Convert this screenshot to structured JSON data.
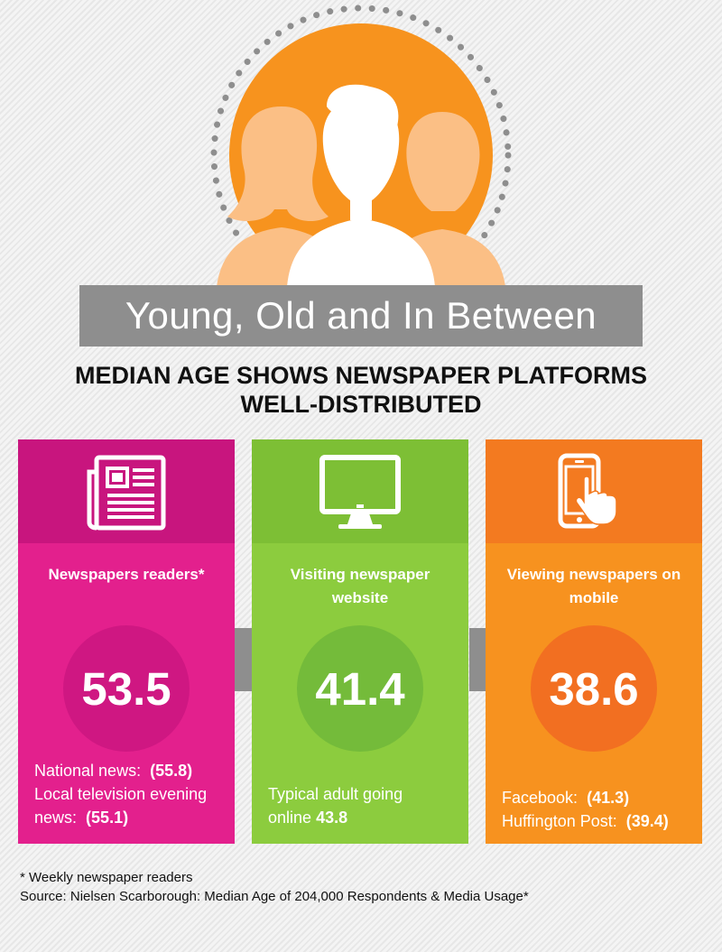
{
  "title": "Young, Old and In Between",
  "subtitle": [
    "MEDIAN AGE SHOWS NEWSPAPER PLATFORMS",
    "WELL-DISTRIBUTED"
  ],
  "colors": {
    "background": "#f1f1f1",
    "banner": "#8e8e8e",
    "hero_orange": "#f7931e",
    "hero_figure_side": "#fbbf85",
    "hero_dots": "#8e8e8e"
  },
  "hero_icon": "people-group-icon",
  "cards": [
    {
      "icon": "newspaper-icon",
      "heading": "Newspapers readers*",
      "value": "53.5",
      "colors": {
        "icon_bg": "#c8157e",
        "body": "#e3208d",
        "circle": "#cf1782"
      },
      "details": [
        {
          "text": "National news:",
          "value": "(55.8)"
        },
        {
          "text": "Local television evening",
          "value": ""
        },
        {
          "text": "news:",
          "value": "(55.1)"
        }
      ]
    },
    {
      "icon": "desktop-monitor-icon",
      "heading": "Visiting newspaper website",
      "value": "41.4",
      "colors": {
        "icon_bg": "#7dbf35",
        "body": "#8ccc3e",
        "circle": "#74bb3a"
      },
      "details": [
        {
          "text": "Typical adult going",
          "value": ""
        },
        {
          "text": "online",
          "value": "43.8"
        }
      ]
    },
    {
      "icon": "mobile-touch-icon",
      "heading": "Viewing newspapers on mobile",
      "value": "38.6",
      "colors": {
        "icon_bg": "#f37a20",
        "body": "#f7921f",
        "circle": "#f26f21"
      },
      "details": [
        {
          "text": "Facebook:",
          "value": "(41.3)"
        },
        {
          "text": "Huffington Post:",
          "value": "(39.4)"
        }
      ]
    }
  ],
  "footnotes": [
    "* Weekly newspaper readers",
    "Source:  Nielsen Scarborough: Median Age of 204,000 Respondents & Media Usage*"
  ]
}
